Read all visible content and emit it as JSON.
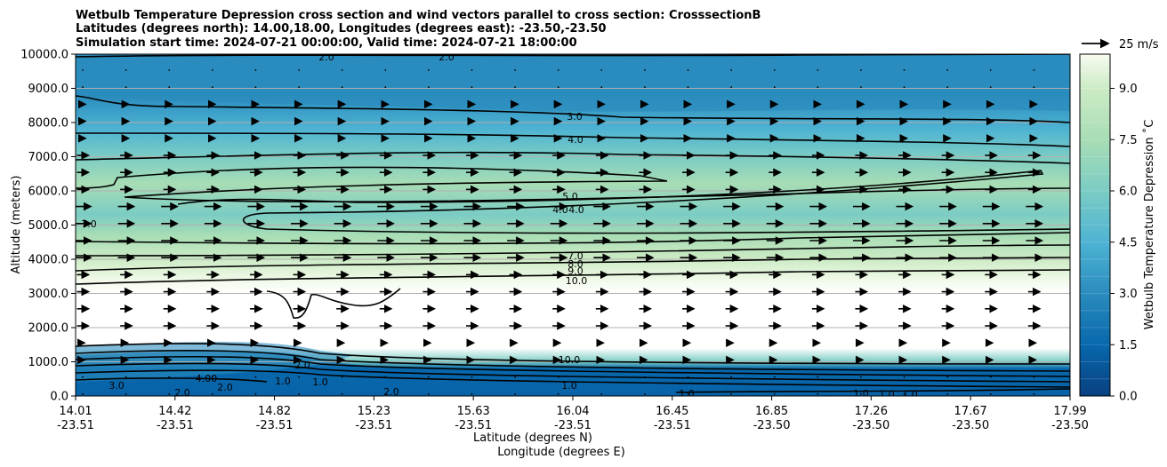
{
  "chart_data": {
    "type": "contour",
    "title_lines": [
      "Wetbulb Temperature Depression cross section and wind vectors parallel to cross section: CrosssectionB",
      "Latitudes (degrees north): 14.00,18.00, Longitudes (degrees east): -23.50,-23.50",
      "Simulation start time: 2024-07-21 00:00:00, Valid time: 2024-07-21 18:00:00"
    ],
    "ylabel": "Altitude (meters)",
    "xlabel_lines": [
      "Latitude (degrees N)",
      "Longitude (degrees E)"
    ],
    "ylim": [
      0,
      10000
    ],
    "yticks": [
      "0.0",
      "1000.0",
      "2000.0",
      "3000.0",
      "4000.0",
      "5000.0",
      "6000.0",
      "7000.0",
      "8000.0",
      "9000.0",
      "10000.0"
    ],
    "xticks": [
      {
        "lat": "14.01",
        "lon": "-23.51"
      },
      {
        "lat": "14.42",
        "lon": "-23.51"
      },
      {
        "lat": "14.82",
        "lon": "-23.51"
      },
      {
        "lat": "15.23",
        "lon": "-23.51"
      },
      {
        "lat": "15.63",
        "lon": "-23.51"
      },
      {
        "lat": "16.04",
        "lon": "-23.51"
      },
      {
        "lat": "16.45",
        "lon": "-23.51"
      },
      {
        "lat": "16.85",
        "lon": "-23.50"
      },
      {
        "lat": "17.26",
        "lon": "-23.50"
      },
      {
        "lat": "17.67",
        "lon": "-23.50"
      },
      {
        "lat": "17.99",
        "lon": "-23.50"
      }
    ],
    "grid": "horizontal",
    "colorbar": {
      "label": "Wetbulb Temperature Depression ˚C",
      "range": [
        0,
        10
      ],
      "ticks": [
        "0.0",
        "1.5",
        "3.0",
        "4.5",
        "6.0",
        "7.5",
        "9.0"
      ],
      "colormap": "GnBu_r"
    },
    "wind_key": {
      "label": "25 m/s",
      "value": 25
    },
    "contour_labels": [
      "2.0",
      "2.0",
      "3.0",
      "4.0",
      "5.0",
      "4.0",
      "4.0",
      "7.0",
      "7.0",
      "8.0",
      "9.0",
      "10.0",
      "10.0",
      "1.0",
      "1.0",
      "1.0",
      "1.0",
      "1.0",
      "2.0",
      "2.0",
      "2.0",
      "1.0",
      "4.00",
      "3.0",
      "2.0",
      "1.0"
    ],
    "depression_profile": [
      {
        "alt": 0,
        "value": 0.4
      },
      {
        "alt": 500,
        "value": 2.0
      },
      {
        "alt": 1000,
        "value": 7.0
      },
      {
        "alt": 1500,
        "value": 11.0
      },
      {
        "alt": 2000,
        "value": 12.0
      },
      {
        "alt": 3000,
        "value": 11.5
      },
      {
        "alt": 3500,
        "value": 10.0
      },
      {
        "alt": 4000,
        "value": 8.5
      },
      {
        "alt": 4500,
        "value": 7.0
      },
      {
        "alt": 5000,
        "value": 5.5
      },
      {
        "alt": 6000,
        "value": 5.8
      },
      {
        "alt": 7000,
        "value": 4.2
      },
      {
        "alt": 8000,
        "value": 3.0
      },
      {
        "alt": 9000,
        "value": 2.6
      },
      {
        "alt": 10000,
        "value": 2.0
      }
    ]
  }
}
